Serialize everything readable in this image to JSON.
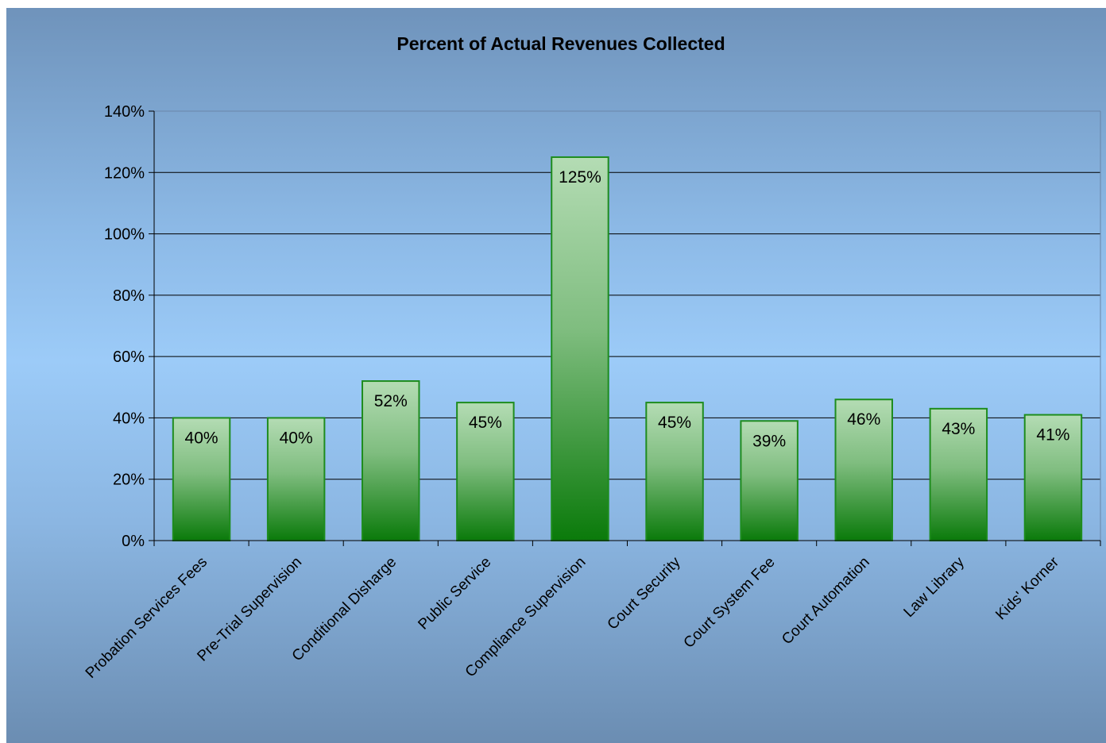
{
  "chart_data": {
    "type": "bar",
    "title": "Percent of Actual Revenues Collected",
    "xlabel": "",
    "ylabel": "",
    "categories": [
      "Probation Services Fees",
      "Pre-Trial Supervision",
      "Conditional Disharge",
      "Public Service",
      "Compliance Supervision",
      "Court Security",
      "Court System Fee",
      "Court Automation",
      "Law Library",
      "Kids' Korner"
    ],
    "values": [
      40,
      40,
      52,
      45,
      125,
      45,
      39,
      46,
      43,
      41
    ],
    "data_labels": [
      "40%",
      "40%",
      "52%",
      "45%",
      "125%",
      "45%",
      "39%",
      "46%",
      "43%",
      "41%"
    ],
    "y_ticks": [
      "0%",
      "20%",
      "40%",
      "60%",
      "80%",
      "100%",
      "120%",
      "140%"
    ],
    "ylim": [
      0,
      140
    ],
    "grid": true,
    "legend": "none",
    "colors": {
      "bar_top": "#b4dcb4",
      "bar_bottom": "#0a7a0a",
      "bar_border": "#1e8c1e",
      "gridline": "#000000"
    }
  }
}
